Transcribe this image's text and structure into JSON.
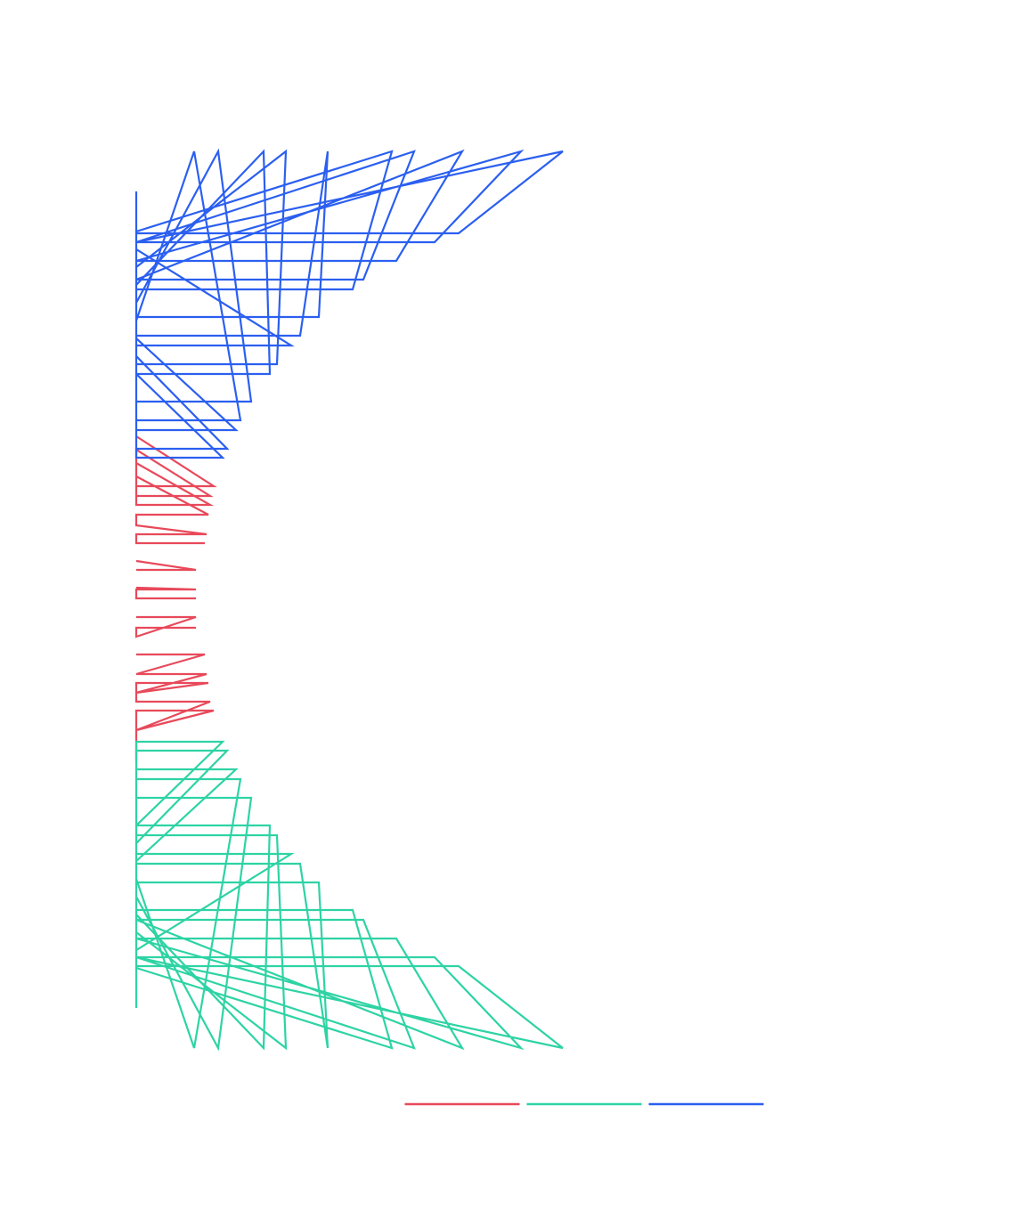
{
  "chart_data": {
    "type": "line",
    "xlim": [
      0,
      500
    ],
    "ylim": [
      0,
      1010
    ],
    "series": [
      {
        "color": "#e8495a",
        "x": [
          0,
          87,
          0,
          0,
          83,
          0,
          0,
          83,
          0,
          0,
          81,
          0,
          0,
          79,
          0,
          0,
          77,
          null,
          0,
          67,
          0,
          null,
          0,
          67,
          0,
          0,
          67,
          null,
          0,
          67,
          0,
          0,
          67,
          null,
          0,
          77,
          0,
          79,
          0,
          81,
          0,
          0,
          83,
          0,
          87,
          0,
          0
        ],
        "y": [
          687,
          631,
          631,
          672,
          620,
          620,
          657,
          610,
          610,
          642,
          599,
          599,
          587,
          577,
          577,
          567,
          567,
          null,
          547,
          537,
          537,
          null,
          517,
          515,
          515,
          505,
          505,
          null,
          484,
          484,
          462,
          472,
          472,
          null,
          442,
          442,
          420,
          420,
          399,
          410,
          410,
          389,
          389,
          357,
          379,
          379,
          322
        ]
      },
      {
        "color": "#2ed3a4",
        "x": [
          0,
          0,
          97,
          0,
          0,
          102,
          0,
          0,
          112,
          0,
          0,
          117,
          65,
          0,
          0,
          129,
          92,
          0,
          0,
          150,
          143,
          0,
          0,
          158,
          168,
          0,
          0,
          174,
          0,
          0,
          184,
          215,
          205,
          0,
          0,
          287,
          243,
          0,
          0,
          312,
          255,
          0,
          366,
          292,
          0,
          432,
          335,
          0,
          479,
          362,
          0
        ],
        "y": [
          45,
          344,
          344,
          250,
          334,
          334,
          230,
          313,
          313,
          210,
          302,
          302,
          0,
          190,
          281,
          281,
          0,
          170,
          250,
          250,
          0,
          150,
          239,
          239,
          0,
          130,
          218,
          218,
          110,
          207,
          207,
          0,
          186,
          186,
          90,
          0,
          155,
          155,
          102,
          0,
          144,
          144,
          0,
          123,
          123,
          0,
          102,
          102,
          0,
          92,
          92
        ]
      },
      {
        "color": "#2b5ff0",
        "x": [
          0,
          0,
          97,
          0,
          0,
          102,
          0,
          0,
          112,
          0,
          0,
          117,
          65,
          0,
          0,
          129,
          92,
          0,
          0,
          150,
          143,
          0,
          0,
          158,
          168,
          0,
          0,
          174,
          0,
          0,
          184,
          215,
          205,
          0,
          0,
          287,
          243,
          0,
          0,
          312,
          255,
          0,
          366,
          292,
          0,
          432,
          335,
          0,
          479,
          362,
          0
        ],
        "y": [
          962,
          663,
          663,
          757,
          673,
          673,
          777,
          694,
          694,
          797,
          705,
          705,
          1007,
          817,
          726,
          726,
          1007,
          837,
          757,
          757,
          1007,
          857,
          768,
          768,
          1007,
          877,
          789,
          789,
          897,
          800,
          800,
          1007,
          821,
          821,
          917,
          1007,
          852,
          852,
          905,
          1007,
          863,
          863,
          1007,
          884,
          884,
          1007,
          905,
          905,
          1007,
          915,
          915
        ]
      }
    ]
  }
}
